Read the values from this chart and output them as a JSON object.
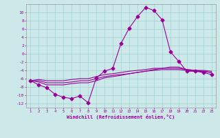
{
  "x": [
    1,
    2,
    3,
    4,
    5,
    6,
    7,
    8,
    9,
    10,
    11,
    12,
    13,
    14,
    15,
    16,
    17,
    18,
    19,
    20,
    21,
    22,
    23
  ],
  "line1": [
    -6.5,
    -7.5,
    -8.2,
    -9.8,
    -10.5,
    -10.8,
    -10.2,
    -11.8,
    -5.8,
    -4.2,
    -3.5,
    2.5,
    6.2,
    9.0,
    11.2,
    10.5,
    8.2,
    0.5,
    -1.8,
    -4.2,
    -4.2,
    -4.5,
    -5.0
  ],
  "line2": [
    -6.5,
    -6.8,
    -7.5,
    -7.5,
    -7.5,
    -7.2,
    -7.0,
    -7.0,
    -6.5,
    -5.8,
    -5.5,
    -5.2,
    -4.8,
    -4.5,
    -4.2,
    -3.8,
    -3.5,
    -3.2,
    -3.2,
    -3.8,
    -4.0,
    -4.2,
    -4.5
  ],
  "line3": [
    -6.5,
    -6.5,
    -7.0,
    -7.0,
    -7.0,
    -6.8,
    -6.5,
    -6.5,
    -6.0,
    -5.5,
    -5.2,
    -5.0,
    -4.8,
    -4.5,
    -4.2,
    -4.0,
    -3.8,
    -3.8,
    -3.8,
    -4.0,
    -4.2,
    -4.3,
    -4.5
  ],
  "line4": [
    -6.5,
    -6.2,
    -6.5,
    -6.5,
    -6.5,
    -6.2,
    -6.0,
    -6.0,
    -5.5,
    -5.0,
    -4.8,
    -4.5,
    -4.2,
    -4.0,
    -3.8,
    -3.5,
    -3.5,
    -3.5,
    -3.5,
    -3.8,
    -4.0,
    -4.0,
    -4.2
  ],
  "line_color": "#990099",
  "bg_color": "#cce8e8",
  "grid_color": "#aad4d4",
  "xlabel": "Windchill (Refroidissement éolien,°C)",
  "ylim": [
    -13,
    12
  ],
  "xlim": [
    0.5,
    23.5
  ],
  "yticks": [
    -12,
    -10,
    -8,
    -6,
    -4,
    -2,
    0,
    2,
    4,
    6,
    8,
    10
  ],
  "xticks": [
    1,
    2,
    3,
    4,
    5,
    6,
    7,
    8,
    9,
    10,
    11,
    12,
    13,
    14,
    15,
    16,
    17,
    18,
    19,
    20,
    21,
    22,
    23
  ]
}
